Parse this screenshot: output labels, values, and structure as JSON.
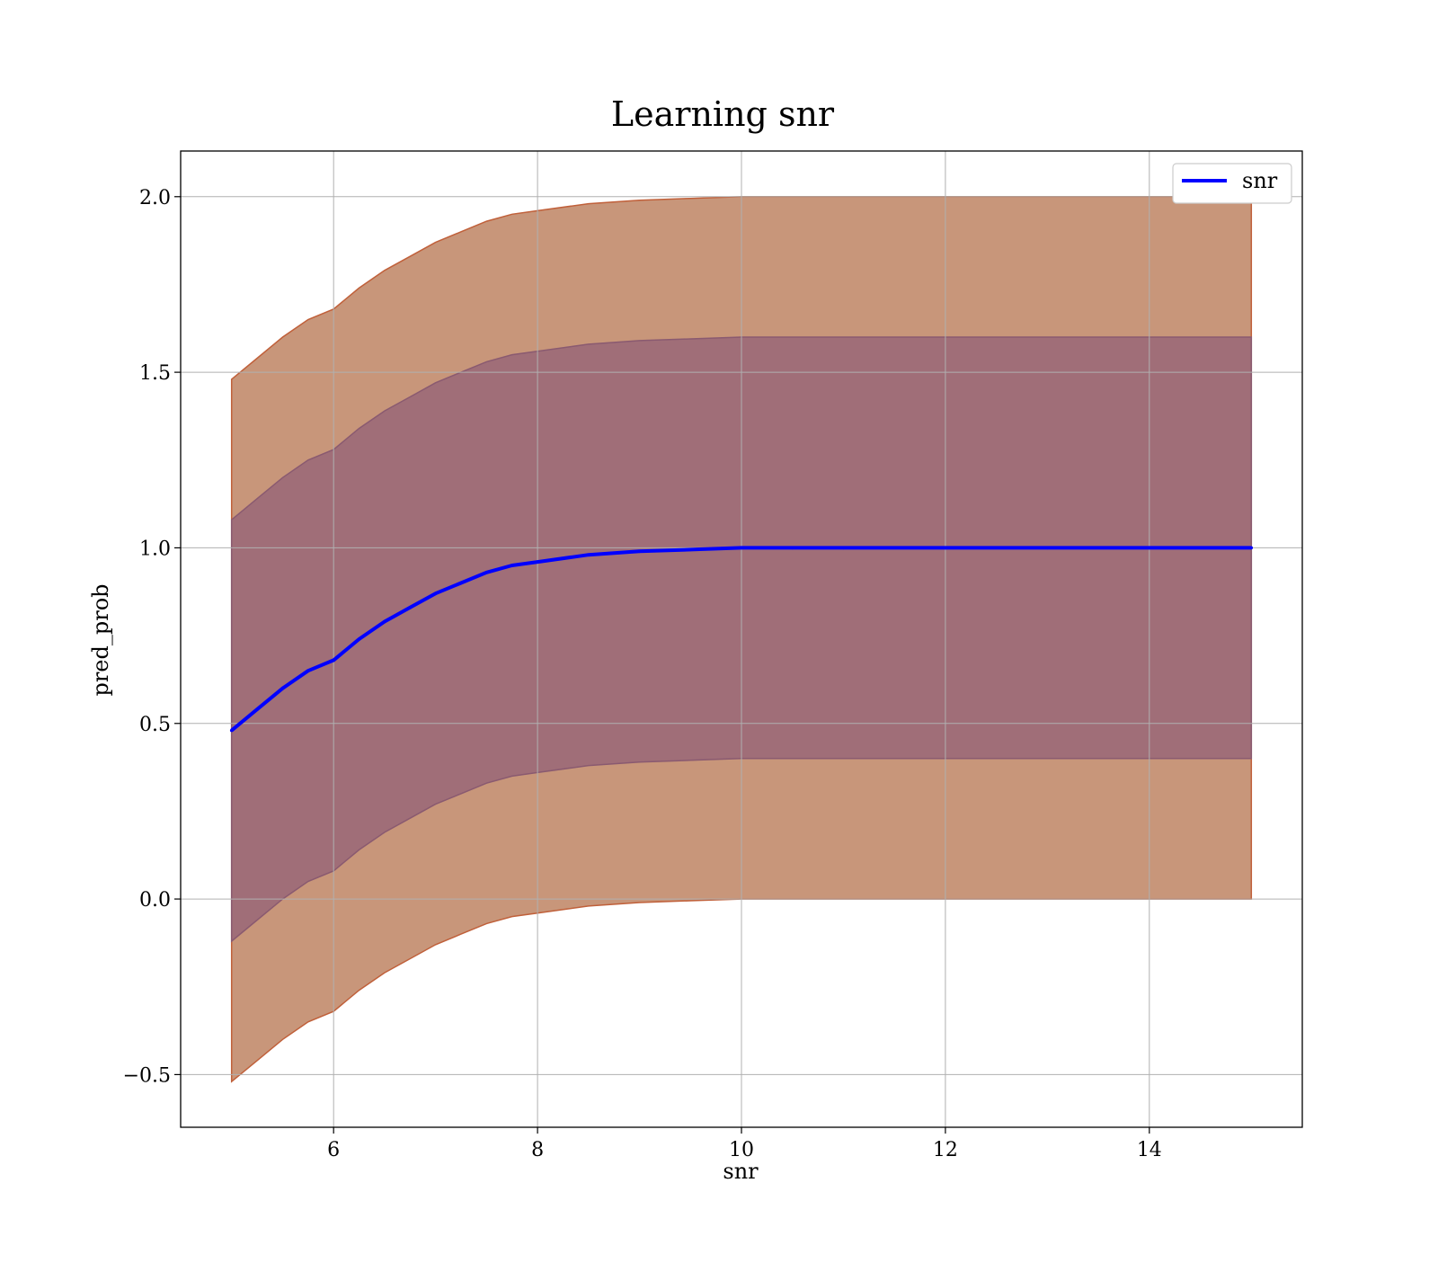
{
  "chart_data": {
    "type": "line",
    "title": "Learning snr",
    "xlabel": "snr",
    "ylabel": "pred_prob",
    "xlim": [
      4.5,
      15.5
    ],
    "ylim": [
      -0.65,
      2.13
    ],
    "grid": true,
    "legend": {
      "placement": "top-right",
      "entries": [
        "snr"
      ]
    },
    "x_ticks": [
      6,
      8,
      10,
      12,
      14
    ],
    "x_tick_labels": [
      "6",
      "8",
      "10",
      "12",
      "14"
    ],
    "y_ticks": [
      -0.5,
      0.0,
      0.5,
      1.0,
      1.5,
      2.0
    ],
    "y_tick_labels": [
      "−0.5",
      "0.0",
      "0.5",
      "1.0",
      "1.5",
      "2.0"
    ],
    "series": [
      {
        "name": "snr",
        "color": "#0000ff",
        "x": [
          5.0,
          5.25,
          5.5,
          5.75,
          6.0,
          6.25,
          6.5,
          6.75,
          7.0,
          7.25,
          7.5,
          7.75,
          8.0,
          8.5,
          9.0,
          9.5,
          10.0,
          10.5,
          11.0,
          12.0,
          13.0,
          14.0,
          15.0
        ],
        "y": [
          0.48,
          0.54,
          0.6,
          0.65,
          0.68,
          0.74,
          0.79,
          0.83,
          0.87,
          0.9,
          0.93,
          0.95,
          0.96,
          0.98,
          0.99,
          0.995,
          1.0,
          1.0,
          1.0,
          1.0,
          1.0,
          1.0,
          1.0
        ]
      }
    ],
    "bands": [
      {
        "description": "outer band",
        "color": "#c8967a",
        "edge_color": "#c0603a",
        "offset": 1.0
      },
      {
        "description": "inner band",
        "color": "#a06e78",
        "edge_color": "#8a5a70",
        "offset": 0.6
      }
    ]
  }
}
